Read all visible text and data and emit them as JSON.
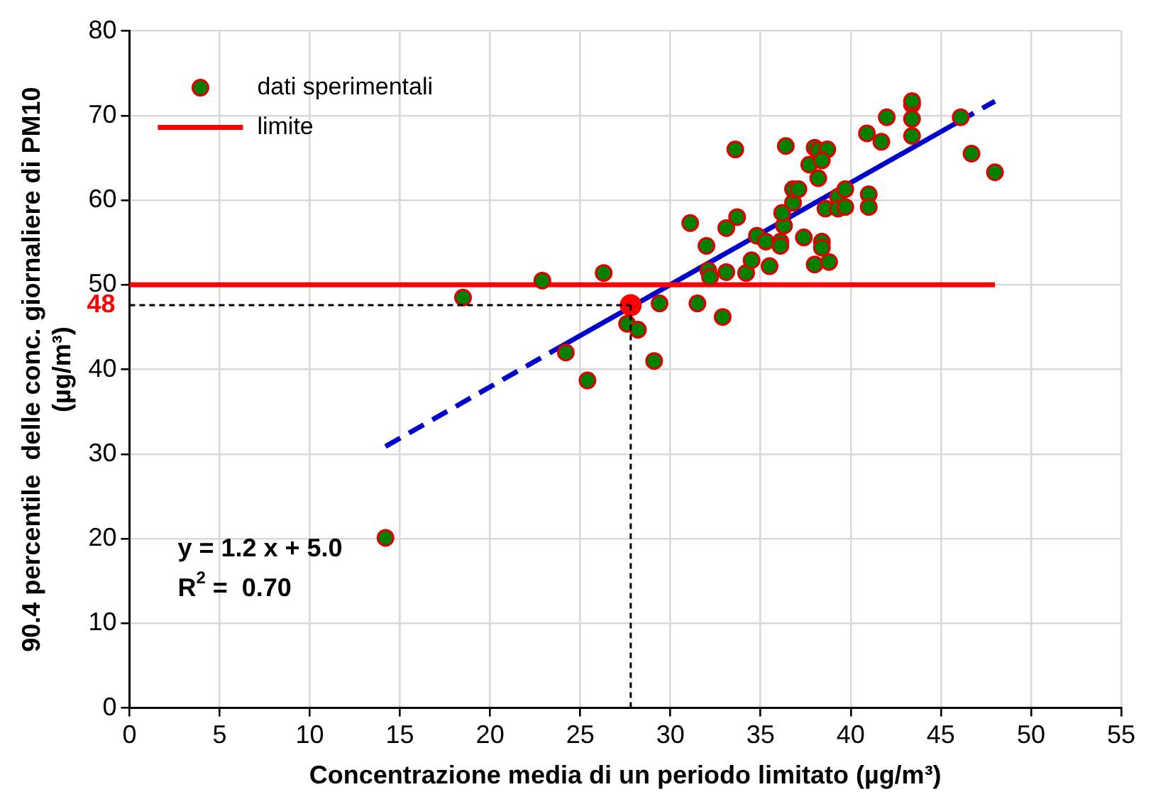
{
  "chart_data": {
    "type": "scatter",
    "xlabel": "Concentrazione media di un periodo limitato (µg/m³)",
    "ylabel": "90.4 percentile  delle conc. giornaliere di PM10\n(µg/m³)",
    "xlim": [
      0,
      55
    ],
    "xticks": [
      0,
      5,
      10,
      15,
      20,
      25,
      30,
      35,
      40,
      45,
      50,
      55
    ],
    "ylim": [
      0,
      80
    ],
    "yticks": [
      0,
      10,
      20,
      30,
      40,
      50,
      60,
      70,
      80
    ],
    "grid": true,
    "legend": "top left",
    "series": [
      {
        "name": "dati sperimentali",
        "marker": "circle",
        "color": "#008000",
        "x": [
          14.2,
          18.5,
          22.9,
          24.2,
          25.4,
          26.3,
          27.6,
          28.2,
          29.1,
          29.4,
          31.5,
          32.9,
          31.1,
          32.0,
          32.1,
          32.2,
          33.1,
          33.1,
          33.7,
          33.6,
          34.2,
          34.5,
          34.8,
          35.3,
          35.5,
          36.1,
          36.1,
          36.3,
          36.2,
          36.4,
          36.8,
          36.8,
          37.1,
          37.4,
          37.7,
          38.0,
          38.2,
          38.0,
          38.2,
          38.7,
          38.4,
          38.4,
          38.4,
          38.8,
          38.6,
          39.3,
          39.3,
          39.7,
          39.7,
          40.9,
          41.0,
          41.0,
          41.7,
          42.0,
          43.4,
          43.4,
          43.4,
          43.4,
          46.1,
          46.7,
          48.0
        ],
        "values": [
          20.1,
          48.5,
          50.5,
          42.0,
          38.7,
          51.4,
          45.4,
          44.7,
          41.0,
          47.8,
          47.8,
          46.2,
          57.3,
          54.6,
          51.7,
          50.9,
          51.5,
          56.7,
          58.0,
          66.0,
          51.4,
          52.9,
          55.8,
          55.1,
          52.2,
          55.1,
          54.6,
          57.0,
          58.5,
          66.4,
          59.7,
          61.3,
          61.3,
          55.6,
          64.2,
          52.4,
          62.6,
          66.2,
          65.9,
          66.0,
          64.7,
          55.1,
          54.4,
          52.7,
          59.0,
          60.4,
          59.0,
          61.3,
          59.2,
          67.9,
          60.7,
          59.2,
          66.9,
          69.8,
          71.3,
          71.7,
          69.6,
          67.6,
          69.8,
          65.5,
          63.3
        ]
      },
      {
        "name": "limite",
        "type": "line",
        "color": "#ff0000",
        "x": [
          0,
          48
        ],
        "values": [
          50,
          50
        ],
        "line_style": "solid",
        "marker": "none"
      },
      {
        "type": "line",
        "color": "#0000cc",
        "x": [
          14.2,
          24
        ],
        "values": [
          30.9,
          42.8
        ],
        "line_style": "dashed",
        "marker": "none"
      },
      {
        "type": "line",
        "color": "#0000cc",
        "x": [
          24,
          46
        ],
        "values": [
          42.8,
          69.3
        ],
        "line_style": "solid",
        "marker": "none"
      },
      {
        "type": "line",
        "color": "#0000cc",
        "x": [
          46,
          48
        ],
        "values": [
          69.3,
          71.7
        ],
        "line_style": "dashed",
        "marker": "none"
      },
      {
        "color": "#ff0000",
        "marker": "circle",
        "x": [
          27.8
        ],
        "values": [
          47.6
        ]
      }
    ],
    "ref_lines": [
      {
        "axis": "y",
        "value": 47.6,
        "label": "48",
        "color": "#000000",
        "line_style": "dotted"
      },
      {
        "axis": "x",
        "value": 27.8,
        "color": "#000000",
        "line_style": "dotted"
      }
    ],
    "annotations": [
      "y = 1.2 x + 5.0",
      "R$^{2}$ =  0.70"
    ]
  }
}
